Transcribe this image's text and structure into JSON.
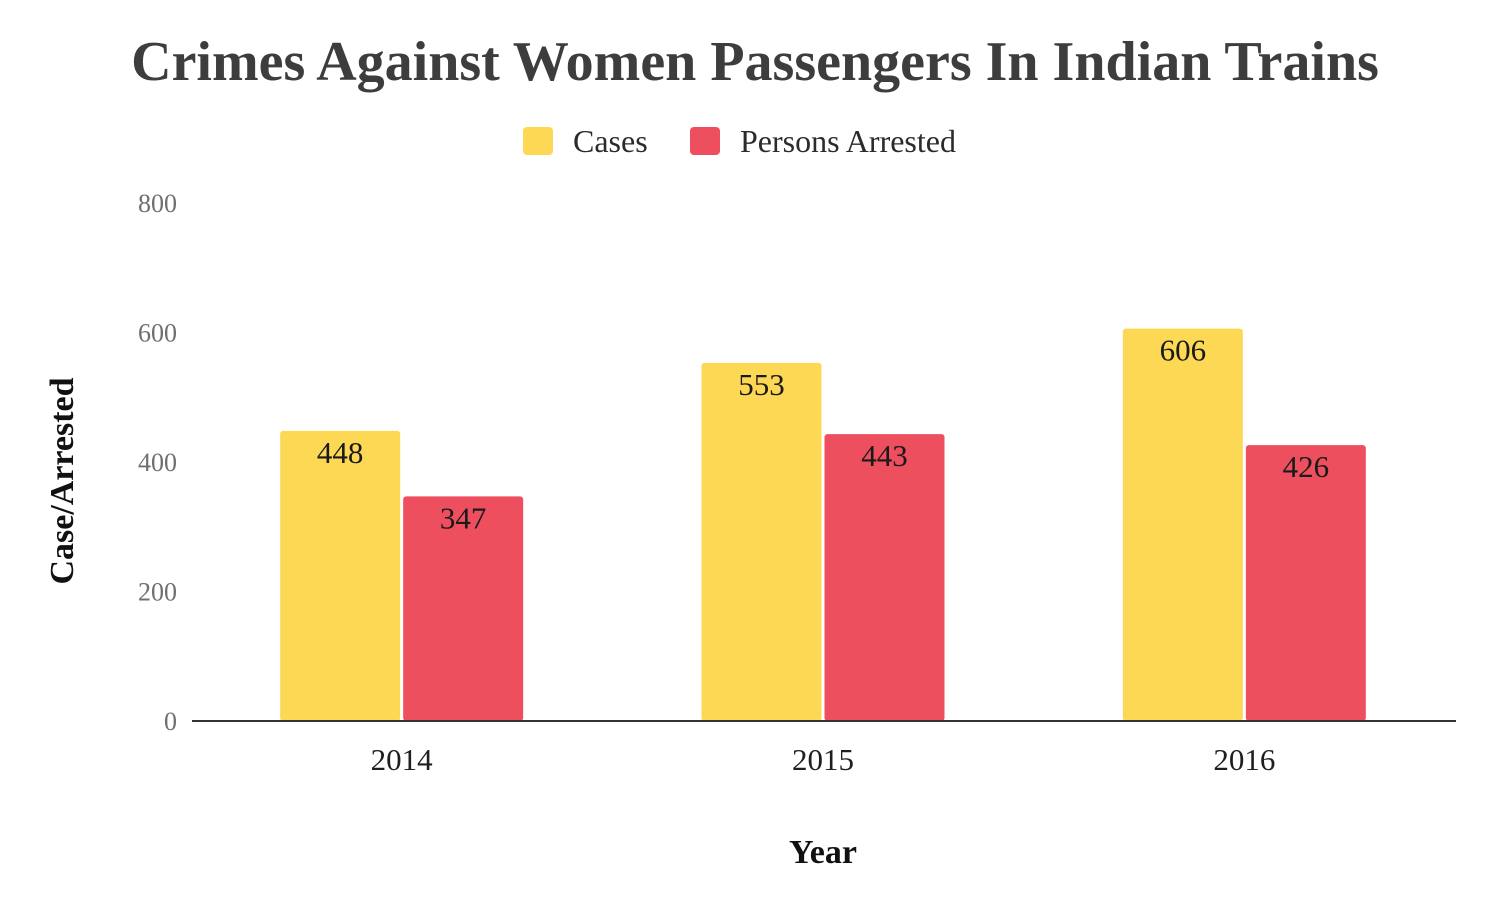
{
  "chart_data": {
    "type": "bar",
    "title": "Crimes Against Women Passengers In Indian Trains",
    "xlabel": "Year",
    "ylabel": "Case/Arrested",
    "categories": [
      "2014",
      "2015",
      "2016"
    ],
    "series": [
      {
        "name": "Cases",
        "color": "#FDD854",
        "values": [
          448,
          553,
          606
        ]
      },
      {
        "name": "Persons Arrested",
        "color": "#EE4F5E",
        "values": [
          347,
          443,
          426
        ]
      }
    ],
    "ylim": [
      0,
      800
    ],
    "yticks": [
      "0",
      "200",
      "400",
      "600",
      "800"
    ],
    "grid": false,
    "legend": "top-center",
    "data_labels": true
  }
}
